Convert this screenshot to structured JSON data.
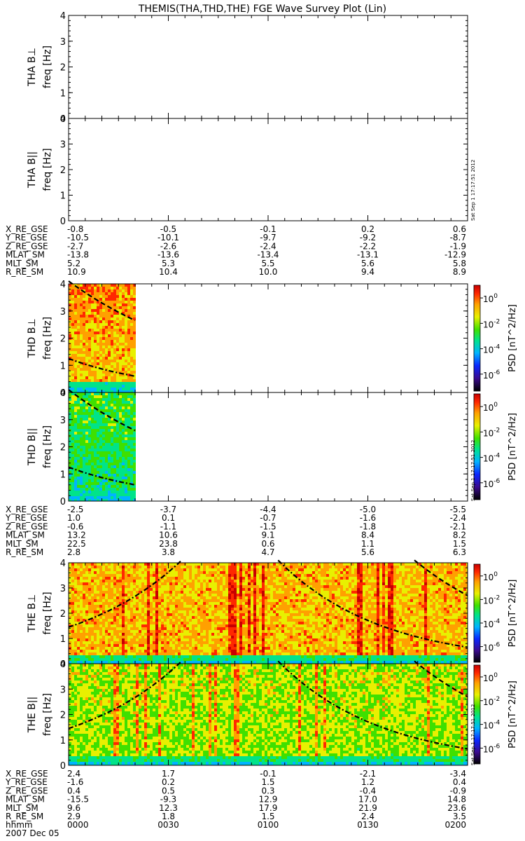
{
  "title": "THEMIS(THA,THD,THE) FGE Wave Survey Plot (Lin)",
  "timestamp": "Sat Sep  1 17:17:51 2012",
  "date_label": "2007 Dec 05",
  "colors": {
    "axis": "#000000",
    "fit_lines": "#000000",
    "colorbar": [
      "#000000",
      "#3b0a8f",
      "#0a28ff",
      "#00b4ff",
      "#00e38a",
      "#3fe000",
      "#e8f000",
      "#ffa000",
      "#ff2800",
      "#c80000"
    ]
  },
  "chart_data": {
    "type": "heatmap",
    "title": "THEMIS(THA,THD,THE) FGE Wave Survey Plot (Lin)",
    "time_axis": {
      "label": "hhmm",
      "ticks": [
        "0000",
        "0030",
        "0100",
        "0130",
        "0200"
      ],
      "date": "2007 Dec 05"
    },
    "colorbar": {
      "label": "PSD [nT^2/Hz]",
      "ticks": [
        "10^0",
        "10^-2",
        "10^-4",
        "10^-6"
      ]
    },
    "panels": [
      {
        "id": "tha-bperp",
        "label": "THA B⊥",
        "ylabel": "freq [Hz]",
        "ylim": [
          0,
          4
        ],
        "yticks": [
          "0",
          "1",
          "2",
          "3",
          "4"
        ],
        "has_data": false
      },
      {
        "id": "tha-bpar",
        "label": "THA B||",
        "ylabel": "freq [Hz]",
        "ylim": [
          0,
          4
        ],
        "yticks": [
          "0",
          "1",
          "2",
          "3",
          "4"
        ],
        "has_data": false
      },
      {
        "id": "thd-bperp",
        "label": "THD B⊥",
        "ylabel": "freq [Hz]",
        "ylim": [
          0,
          4
        ],
        "yticks": [
          "0",
          "1",
          "2",
          "3",
          "4"
        ],
        "has_data": true,
        "data_end": "0020",
        "fit_lines": [
          {
            "style": "dashed",
            "start_hz": 4.1,
            "end_hz": 2.65
          },
          {
            "style": "dashdot",
            "start_hz": 1.25,
            "end_hz": 0.6
          }
        ]
      },
      {
        "id": "thd-bpar",
        "label": "THD B||",
        "ylabel": "freq [Hz]",
        "ylim": [
          0,
          4
        ],
        "yticks": [
          "0",
          "1",
          "2",
          "3",
          "4"
        ],
        "has_data": true,
        "data_end": "0020",
        "fit_lines": [
          {
            "style": "dashed",
            "start_hz": 4.1,
            "end_hz": 2.6
          },
          {
            "style": "dashdot",
            "start_hz": 1.25,
            "end_hz": 0.6
          }
        ]
      },
      {
        "id": "the-bperp",
        "label": "THE B⊥",
        "ylabel": "freq [Hz]",
        "ylim": [
          0,
          4
        ],
        "yticks": [
          "0",
          "1",
          "2",
          "3",
          "4"
        ],
        "has_data": true,
        "data_end": "0200"
      },
      {
        "id": "the-bpar",
        "label": "THE B||",
        "ylabel": "freq [Hz]",
        "ylim": [
          0,
          4
        ],
        "yticks": [
          "0",
          "1",
          "2",
          "3",
          "4"
        ],
        "has_data": true,
        "data_end": "0200"
      }
    ],
    "ephemeris": [
      {
        "probe": "THA",
        "rows": [
          {
            "name": "X_RE_GSE",
            "values": [
              "-0.8",
              "-0.5",
              "-0.1",
              "0.2",
              "0.6"
            ]
          },
          {
            "name": "Y_RE_GSE",
            "values": [
              "-10.5",
              "-10.1",
              "-9.7",
              "-9.2",
              "-8.7"
            ]
          },
          {
            "name": "Z_RE_GSE",
            "values": [
              "-2.7",
              "-2.6",
              "-2.4",
              "-2.2",
              "-1.9"
            ]
          },
          {
            "name": "MLAT_SM",
            "values": [
              "-13.8",
              "-13.6",
              "-13.4",
              "-13.1",
              "-12.9"
            ]
          },
          {
            "name": "MLT_SM",
            "values": [
              "5.2",
              "5.3",
              "5.5",
              "5.6",
              "5.8"
            ]
          },
          {
            "name": "R_RE_SM",
            "values": [
              "10.9",
              "10.4",
              "10.0",
              "9.4",
              "8.9"
            ]
          }
        ]
      },
      {
        "probe": "THD",
        "rows": [
          {
            "name": "X_RE_GSE",
            "values": [
              "-2.5",
              "-3.7",
              "-4.4",
              "-5.0",
              "-5.5"
            ]
          },
          {
            "name": "Y_RE_GSE",
            "values": [
              "1.0",
              "0.1",
              "-0.7",
              "-1.6",
              "-2.4"
            ]
          },
          {
            "name": "Z_RE_GSE",
            "values": [
              "-0.6",
              "-1.1",
              "-1.5",
              "-1.8",
              "-2.1"
            ]
          },
          {
            "name": "MLAT_SM",
            "values": [
              "13.2",
              "10.6",
              "9.1",
              "8.4",
              "8.2"
            ]
          },
          {
            "name": "MLT_SM",
            "values": [
              "22.5",
              "23.8",
              "0.6",
              "1.1",
              "1.5"
            ]
          },
          {
            "name": "R_RE_SM",
            "values": [
              "2.8",
              "3.8",
              "4.7",
              "5.6",
              "6.3"
            ]
          }
        ]
      },
      {
        "probe": "THE",
        "rows": [
          {
            "name": "X_RE_GSE",
            "values": [
              "2.4",
              "1.7",
              "-0.1",
              "-2.1",
              "-3.4"
            ]
          },
          {
            "name": "Y_RE_GSE",
            "values": [
              "-1.6",
              "0.2",
              "1.5",
              "1.2",
              "0.4"
            ]
          },
          {
            "name": "Z_RE_GSE",
            "values": [
              "0.4",
              "0.5",
              "0.3",
              "-0.4",
              "-0.9"
            ]
          },
          {
            "name": "MLAT_SM",
            "values": [
              "-15.5",
              "-9.3",
              "12.9",
              "17.0",
              "14.8"
            ]
          },
          {
            "name": "MLT_SM",
            "values": [
              "9.6",
              "12.3",
              "17.9",
              "21.9",
              "23.6"
            ]
          },
          {
            "name": "R_RE_SM",
            "values": [
              "2.9",
              "1.8",
              "1.5",
              "2.4",
              "3.5"
            ]
          },
          {
            "name": "hhmm",
            "values": [
              "0000",
              "0030",
              "0100",
              "0130",
              "0200"
            ]
          }
        ]
      }
    ]
  }
}
